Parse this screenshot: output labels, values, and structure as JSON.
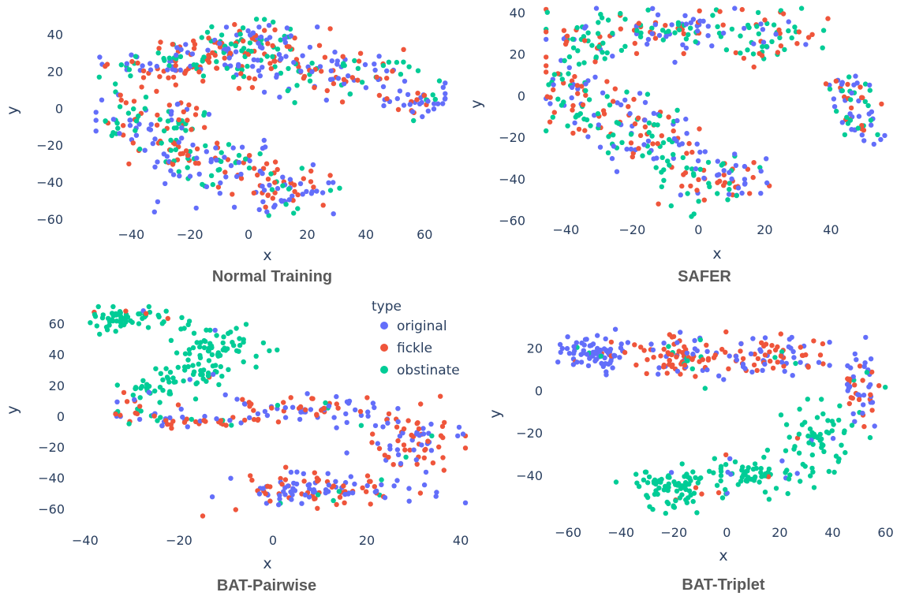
{
  "legend": {
    "title": "type",
    "items": [
      {
        "label": "original",
        "color": "#636efa"
      },
      {
        "label": "fickle",
        "color": "#ef553b"
      },
      {
        "label": "obstinate",
        "color": "#00cc96"
      }
    ]
  },
  "chart_data": [
    {
      "type": "scatter",
      "title": "Normal Training",
      "xlabel": "x",
      "ylabel": "y",
      "xlim": [
        -53,
        68
      ],
      "ylim": [
        -63,
        50
      ],
      "xticks": [
        -40,
        -20,
        0,
        20,
        40,
        60
      ],
      "yticks": [
        -60,
        -40,
        -20,
        0,
        20,
        40
      ],
      "grid": false,
      "clusters": [
        {
          "x": -30,
          "y": 22,
          "sx": 12,
          "sy": 4,
          "n": 60,
          "mix": [
            0.3,
            0.35,
            0.35
          ]
        },
        {
          "x": -15,
          "y": 30,
          "sx": 7,
          "sy": 6,
          "n": 60,
          "mix": [
            0.3,
            0.35,
            0.35
          ]
        },
        {
          "x": 3,
          "y": 38,
          "sx": 10,
          "sy": 5,
          "n": 70,
          "mix": [
            0.3,
            0.35,
            0.35
          ]
        },
        {
          "x": 5,
          "y": 25,
          "sx": 8,
          "sy": 6,
          "n": 50,
          "mix": [
            0.3,
            0.35,
            0.35
          ]
        },
        {
          "x": 30,
          "y": 18,
          "sx": 14,
          "sy": 6,
          "n": 90,
          "mix": [
            0.4,
            0.3,
            0.3
          ]
        },
        {
          "x": 55,
          "y": 4,
          "sx": 6,
          "sy": 4,
          "n": 40,
          "mix": [
            0.6,
            0.25,
            0.15
          ]
        },
        {
          "x": -38,
          "y": -5,
          "sx": 8,
          "sy": 8,
          "n": 60,
          "mix": [
            0.3,
            0.35,
            0.35
          ]
        },
        {
          "x": -25,
          "y": -20,
          "sx": 6,
          "sy": 12,
          "n": 70,
          "mix": [
            0.35,
            0.35,
            0.3
          ]
        },
        {
          "x": -8,
          "y": -30,
          "sx": 10,
          "sy": 6,
          "n": 70,
          "mix": [
            0.35,
            0.35,
            0.3
          ]
        },
        {
          "x": 12,
          "y": -45,
          "sx": 9,
          "sy": 6,
          "n": 70,
          "mix": [
            0.4,
            0.35,
            0.25
          ]
        }
      ]
    },
    {
      "type": "scatter",
      "title": "SAFER",
      "xlabel": "x",
      "ylabel": "y",
      "xlim": [
        -47,
        58
      ],
      "ylim": [
        -62,
        43
      ],
      "xticks": [
        -40,
        -20,
        0,
        20,
        40
      ],
      "yticks": [
        -60,
        -40,
        -20,
        0,
        20,
        40
      ],
      "grid": false,
      "clusters": [
        {
          "x": -35,
          "y": 25,
          "sx": 7,
          "sy": 6,
          "n": 50,
          "mix": [
            0.2,
            0.3,
            0.5
          ]
        },
        {
          "x": -8,
          "y": 33,
          "sx": 12,
          "sy": 5,
          "n": 90,
          "mix": [
            0.3,
            0.3,
            0.4
          ]
        },
        {
          "x": 20,
          "y": 30,
          "sx": 8,
          "sy": 7,
          "n": 60,
          "mix": [
            0.3,
            0.35,
            0.35
          ]
        },
        {
          "x": -40,
          "y": 6,
          "sx": 5,
          "sy": 4,
          "n": 30,
          "mix": [
            0.3,
            0.3,
            0.4
          ]
        },
        {
          "x": 45,
          "y": 2,
          "sx": 4,
          "sy": 4,
          "n": 30,
          "mix": [
            0.4,
            0.3,
            0.3
          ]
        },
        {
          "x": 50,
          "y": -12,
          "sx": 4,
          "sy": 6,
          "n": 35,
          "mix": [
            0.4,
            0.3,
            0.3
          ]
        },
        {
          "x": -30,
          "y": -10,
          "sx": 9,
          "sy": 6,
          "n": 80,
          "mix": [
            0.3,
            0.35,
            0.35
          ]
        },
        {
          "x": -12,
          "y": -24,
          "sx": 7,
          "sy": 7,
          "n": 60,
          "mix": [
            0.3,
            0.35,
            0.35
          ]
        },
        {
          "x": 5,
          "y": -40,
          "sx": 8,
          "sy": 7,
          "n": 80,
          "mix": [
            0.3,
            0.4,
            0.3
          ]
        }
      ]
    },
    {
      "type": "scatter",
      "title": "BAT-Pairwise",
      "xlabel": "x",
      "ylabel": "y",
      "xlim": [
        -42,
        42
      ],
      "ylim": [
        -68,
        72
      ],
      "xticks": [
        -40,
        -20,
        0,
        20,
        40
      ],
      "yticks": [
        -60,
        -40,
        -20,
        0,
        20,
        40,
        60
      ],
      "grid": false,
      "clusters": [
        {
          "x": -32,
          "y": 63,
          "sx": 4,
          "sy": 4,
          "n": 60,
          "mix": [
            0.02,
            0.02,
            0.96
          ]
        },
        {
          "x": -12,
          "y": 45,
          "sx": 5,
          "sy": 8,
          "n": 70,
          "mix": [
            0.02,
            0.02,
            0.96
          ]
        },
        {
          "x": -17,
          "y": 27,
          "sx": 4,
          "sy": 3,
          "n": 30,
          "mix": [
            0.02,
            0.02,
            0.96
          ]
        },
        {
          "x": -26,
          "y": 18,
          "sx": 3,
          "sy": 3,
          "n": 25,
          "mix": [
            0.02,
            0.02,
            0.96
          ]
        },
        {
          "x": -30,
          "y": 3,
          "sx": 4,
          "sy": 5,
          "n": 25,
          "mix": [
            0.3,
            0.3,
            0.4
          ]
        },
        {
          "x": -15,
          "y": -3,
          "sx": 8,
          "sy": 2,
          "n": 40,
          "mix": [
            0.4,
            0.5,
            0.1
          ]
        },
        {
          "x": 8,
          "y": 5,
          "sx": 9,
          "sy": 4,
          "n": 70,
          "mix": [
            0.45,
            0.5,
            0.05
          ]
        },
        {
          "x": 30,
          "y": -15,
          "sx": 5,
          "sy": 10,
          "n": 80,
          "mix": [
            0.4,
            0.55,
            0.05
          ]
        },
        {
          "x": 10,
          "y": -48,
          "sx": 11,
          "sy": 6,
          "n": 120,
          "mix": [
            0.45,
            0.5,
            0.05
          ]
        }
      ]
    },
    {
      "type": "scatter",
      "title": "BAT-Triplet",
      "xlabel": "x",
      "ylabel": "y",
      "xlim": [
        -66,
        64
      ],
      "ylim": [
        -62,
        31
      ],
      "xticks": [
        -60,
        -40,
        -20,
        0,
        20,
        40,
        60
      ],
      "yticks": [
        -40,
        -20,
        0,
        20
      ],
      "grid": false,
      "clusters": [
        {
          "x": -50,
          "y": 18,
          "sx": 6,
          "sy": 4,
          "n": 80,
          "mix": [
            0.9,
            0.08,
            0.02
          ]
        },
        {
          "x": -20,
          "y": 15,
          "sx": 8,
          "sy": 5,
          "n": 80,
          "mix": [
            0.3,
            0.65,
            0.05
          ]
        },
        {
          "x": 15,
          "y": 15,
          "sx": 12,
          "sy": 5,
          "n": 90,
          "mix": [
            0.4,
            0.55,
            0.05
          ]
        },
        {
          "x": 50,
          "y": 3,
          "sx": 4,
          "sy": 8,
          "n": 50,
          "mix": [
            0.45,
            0.45,
            0.1
          ]
        },
        {
          "x": 35,
          "y": -25,
          "sx": 7,
          "sy": 8,
          "n": 60,
          "mix": [
            0.05,
            0.05,
            0.9
          ]
        },
        {
          "x": 10,
          "y": -40,
          "sx": 10,
          "sy": 5,
          "n": 70,
          "mix": [
            0.03,
            0.03,
            0.94
          ]
        },
        {
          "x": -20,
          "y": -47,
          "sx": 9,
          "sy": 5,
          "n": 80,
          "mix": [
            0.03,
            0.03,
            0.94
          ]
        }
      ]
    }
  ]
}
